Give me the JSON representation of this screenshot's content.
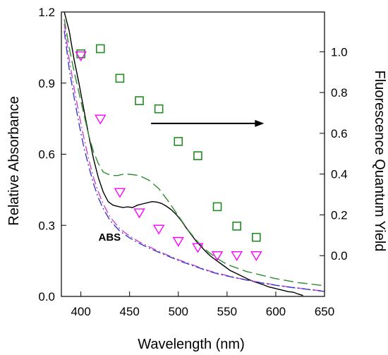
{
  "chart_data": {
    "type": "line",
    "xlabel": "Wavelength (nm)",
    "ylabel_left": "Relative Absorbance",
    "ylabel_right": "Fluorescence Quantum Yield",
    "xlim": [
      380,
      650
    ],
    "ylim_left": [
      0,
      1.2
    ],
    "ylim_right": [
      -0.2,
      1.195
    ],
    "x_ticks": [
      400,
      450,
      500,
      550,
      600,
      650
    ],
    "y_left_ticks": [
      0.0,
      0.3,
      0.6,
      0.9,
      1.2
    ],
    "y_left_tick_labels": [
      "0.0",
      "0.3",
      "0.6",
      "0.9",
      "1.2"
    ],
    "y_right_ticks": [
      0.0,
      0.2,
      0.4,
      0.6,
      0.8,
      1.0
    ],
    "y_right_tick_labels": [
      "0.0",
      "0.2",
      "0.4",
      "0.6",
      "0.8",
      "1.0"
    ],
    "grid": false,
    "annotations": [
      {
        "text": "ABS",
        "x": 418,
        "y": 0.25,
        "axis": "left"
      }
    ],
    "arrow": {
      "x_start": 472,
      "x_end": 588,
      "y": 0.73,
      "axis": "left"
    },
    "absorbance_series": [
      {
        "style": "solid",
        "color": "#000000",
        "x": [
          383,
          388,
          393,
          398,
          403,
          408,
          413,
          418,
          423,
          428,
          433,
          438,
          443,
          448,
          453,
          458,
          463,
          468,
          473,
          478,
          483,
          488,
          493,
          498,
          503,
          508,
          513,
          518,
          523,
          528,
          533,
          538,
          543,
          548,
          553,
          558,
          563,
          568,
          573,
          578,
          583,
          588,
          593,
          598,
          603,
          608,
          613,
          618,
          623,
          628
        ],
        "y": [
          1.2,
          1.12,
          1.0,
          0.9,
          0.79,
          0.68,
          0.58,
          0.5,
          0.44,
          0.4,
          0.385,
          0.38,
          0.375,
          0.378,
          0.375,
          0.385,
          0.39,
          0.395,
          0.4,
          0.398,
          0.392,
          0.38,
          0.365,
          0.345,
          0.32,
          0.29,
          0.262,
          0.235,
          0.212,
          0.19,
          0.17,
          0.155,
          0.14,
          0.125,
          0.11,
          0.1,
          0.09,
          0.08,
          0.07,
          0.062,
          0.055,
          0.048,
          0.04,
          0.035,
          0.03,
          0.025,
          0.02,
          0.018,
          0.01,
          0.004
        ]
      },
      {
        "style": "dashed",
        "color": "#2e8b2e",
        "x": [
          383,
          388,
          393,
          398,
          403,
          408,
          413,
          418,
          423,
          428,
          433,
          438,
          443,
          450,
          460,
          470,
          480,
          490,
          500,
          510,
          520,
          530,
          540,
          550,
          560,
          570,
          580,
          590,
          600,
          610,
          620,
          630,
          640,
          650
        ],
        "y": [
          1.17,
          1.05,
          0.95,
          0.86,
          0.77,
          0.68,
          0.61,
          0.56,
          0.525,
          0.515,
          0.51,
          0.51,
          0.515,
          0.515,
          0.51,
          0.49,
          0.455,
          0.4,
          0.34,
          0.28,
          0.23,
          0.19,
          0.16,
          0.135,
          0.12,
          0.105,
          0.095,
          0.085,
          0.075,
          0.068,
          0.06,
          0.055,
          0.05,
          0.045
        ]
      },
      {
        "style": "dash-dot",
        "color": "#cc44cc",
        "x": [
          383,
          388,
          393,
          398,
          403,
          408,
          413,
          418,
          423,
          430,
          440,
          450,
          460,
          470,
          480,
          490,
          500,
          510,
          520,
          530,
          540,
          550,
          560,
          570,
          580,
          590,
          600,
          610,
          620,
          630,
          640,
          650
        ],
        "y": [
          1.15,
          1.0,
          0.88,
          0.77,
          0.67,
          0.58,
          0.5,
          0.44,
          0.39,
          0.335,
          0.285,
          0.255,
          0.23,
          0.21,
          0.19,
          0.172,
          0.155,
          0.14,
          0.125,
          0.11,
          0.098,
          0.088,
          0.078,
          0.07,
          0.062,
          0.055,
          0.048,
          0.042,
          0.037,
          0.032,
          0.027,
          0.022
        ]
      },
      {
        "style": "dash-dot",
        "color": "#3a3acc",
        "x": [
          383,
          388,
          393,
          398,
          403,
          408,
          413,
          418,
          423,
          430,
          440,
          450,
          460,
          470,
          480,
          490,
          500,
          510,
          520,
          530,
          540,
          550,
          560,
          570,
          580,
          590,
          600,
          610,
          620,
          630,
          640,
          650
        ],
        "y": [
          1.12,
          0.96,
          0.84,
          0.73,
          0.63,
          0.55,
          0.475,
          0.415,
          0.37,
          0.32,
          0.275,
          0.247,
          0.224,
          0.204,
          0.186,
          0.169,
          0.152,
          0.137,
          0.122,
          0.108,
          0.096,
          0.086,
          0.077,
          0.069,
          0.061,
          0.054,
          0.047,
          0.041,
          0.036,
          0.031,
          0.026,
          0.021
        ]
      }
    ],
    "quantum_yield_series": [
      {
        "marker": "square",
        "color": "#228b22",
        "x": [
          400,
          420,
          440,
          460,
          480,
          500,
          520,
          540,
          560,
          580
        ],
        "y": [
          0.99,
          1.015,
          0.87,
          0.76,
          0.72,
          0.56,
          0.49,
          0.24,
          0.145,
          0.09
        ]
      },
      {
        "marker": "triangle-down",
        "color": "#ff00ff",
        "x": [
          400,
          420,
          440,
          460,
          480,
          500,
          520,
          540,
          560,
          580
        ],
        "y": [
          0.98,
          0.67,
          0.31,
          0.21,
          0.13,
          0.07,
          0.04,
          0.0,
          0.0,
          0.0
        ]
      }
    ]
  }
}
